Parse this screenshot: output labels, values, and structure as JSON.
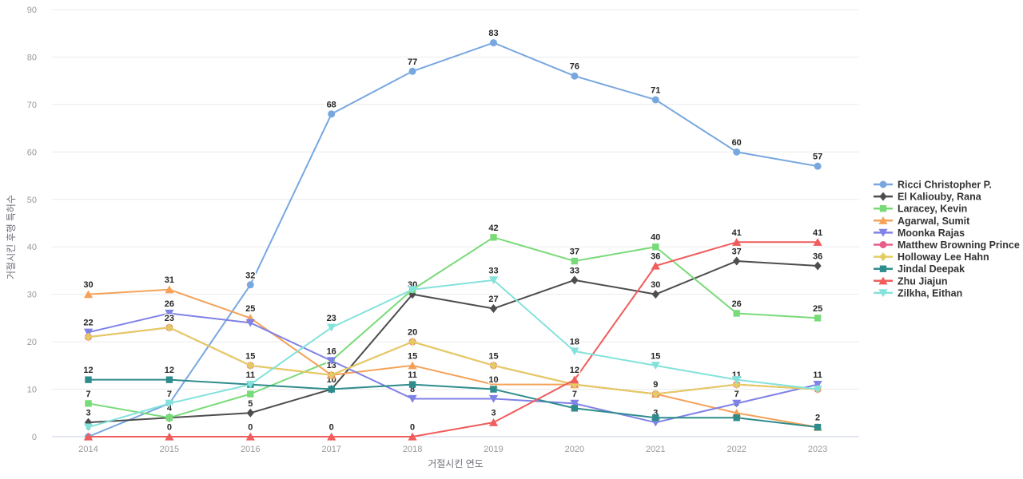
{
  "chart_data": {
    "type": "line",
    "title": "",
    "xlabel": "거절시킨 연도",
    "ylabel": "거절시킨 후행 특허수",
    "x": [
      2014,
      2015,
      2016,
      2017,
      2018,
      2019,
      2020,
      2021,
      2022,
      2023
    ],
    "ylim": [
      0,
      90
    ],
    "ytick_step": 10,
    "grid": true,
    "legend_position": "right",
    "series": [
      {
        "name": "Ricci Christopher P.",
        "color": "#78A7DF",
        "symbol": "circle",
        "values": [
          0,
          7,
          32,
          68,
          77,
          83,
          76,
          71,
          60,
          57
        ],
        "labels": [
          "0",
          "7",
          "32",
          "68",
          "77",
          "83",
          "76",
          "71",
          "60",
          "57"
        ]
      },
      {
        "name": "El Kaliouby, Rana",
        "color": "#4D4D4D",
        "symbol": "diamond",
        "values": [
          3,
          4,
          5,
          10,
          30,
          27,
          33,
          30,
          37,
          36
        ],
        "labels": [
          "3",
          "",
          "5",
          "10",
          "30",
          "27",
          "33",
          "30",
          "37",
          "36"
        ]
      },
      {
        "name": "Laracey, Kevin",
        "color": "#79DA79",
        "symbol": "square",
        "values": [
          7,
          4,
          9,
          16,
          31,
          42,
          37,
          40,
          26,
          25
        ],
        "labels": [
          "7",
          "4",
          "9",
          "16",
          "",
          "42",
          "37",
          "40",
          "26",
          "25"
        ]
      },
      {
        "name": "Agarwal, Sumit",
        "color": "#F4A259",
        "symbol": "triangle",
        "values": [
          30,
          31,
          25,
          13,
          15,
          11,
          11,
          9,
          5,
          2
        ],
        "labels": [
          "30",
          "31",
          "25",
          "13",
          "15",
          "",
          "",
          "",
          "5",
          ""
        ]
      },
      {
        "name": "Moonka Rajas",
        "color": "#7F82E6",
        "symbol": "triangle-down",
        "values": [
          22,
          26,
          24,
          16,
          8,
          8,
          7,
          3,
          7,
          11
        ],
        "labels": [
          "22",
          "26",
          "",
          "",
          "8",
          "8",
          "7",
          "3",
          "7",
          "11"
        ]
      },
      {
        "name": "Matthew Browning Prince",
        "color": "#E85D87",
        "symbol": "circle",
        "values": [
          21,
          23,
          15,
          13,
          20,
          15,
          11,
          9,
          11,
          10
        ],
        "labels": [
          "",
          "",
          "",
          "",
          "",
          "",
          "",
          "",
          "",
          ""
        ]
      },
      {
        "name": "Holloway Lee Hahn",
        "color": "#E4CD60",
        "symbol": "diamond",
        "values": [
          21,
          23,
          15,
          13,
          20,
          15,
          11,
          9,
          11,
          10
        ],
        "labels": [
          "",
          "23",
          "15",
          "",
          "20",
          "15",
          "",
          "9",
          "11",
          ""
        ]
      },
      {
        "name": "Jindal Deepak",
        "color": "#2E8C8C",
        "symbol": "square",
        "values": [
          12,
          12,
          11,
          10,
          11,
          10,
          6,
          4,
          4,
          2
        ],
        "labels": [
          "12",
          "12",
          "11",
          "",
          "11",
          "10",
          "",
          "",
          "",
          "2"
        ]
      },
      {
        "name": "Zhu Jiajun",
        "color": "#F15C5C",
        "symbol": "triangle",
        "values": [
          0,
          0,
          0,
          0,
          0,
          3,
          12,
          36,
          41,
          41
        ],
        "labels": [
          "",
          "0",
          "0",
          "0",
          "0",
          "3",
          "12",
          "36",
          "41",
          "41"
        ]
      },
      {
        "name": "Zilkha, Eithan",
        "color": "#83E2DB",
        "symbol": "triangle-down",
        "values": [
          2,
          7,
          11,
          23,
          31,
          33,
          18,
          15,
          12,
          10
        ],
        "labels": [
          "",
          "",
          "",
          "23",
          "",
          "33",
          "18",
          "15",
          "",
          ""
        ]
      }
    ]
  }
}
